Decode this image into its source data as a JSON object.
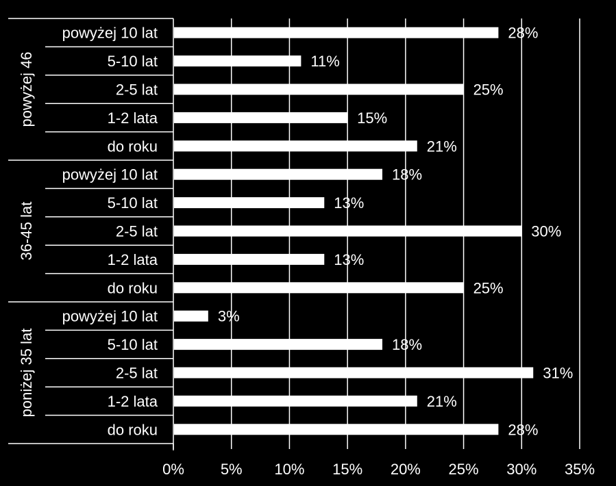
{
  "chart_data": {
    "type": "bar",
    "orientation": "horizontal",
    "title": "",
    "xlabel": "",
    "ylabel": "",
    "xlim": [
      0,
      35
    ],
    "x_ticks": [
      "0%",
      "5%",
      "10%",
      "15%",
      "20%",
      "25%",
      "30%",
      "35%"
    ],
    "grid": "vertical",
    "legend": "none",
    "colors": {
      "background": "#000000",
      "bar": "#ffffff",
      "text": "#ffffff"
    },
    "groups": [
      {
        "name": "powyżej 46",
        "categories": [
          "powyżej 10 lat",
          "5-10 lat",
          "2-5 lat",
          "1-2 lata",
          "do roku"
        ],
        "values": [
          28,
          11,
          25,
          15,
          21
        ],
        "labels": [
          "28%",
          "11%",
          "25%",
          "15%",
          "21%"
        ]
      },
      {
        "name": "36-45 lat",
        "categories": [
          "powyżej 10 lat",
          "5-10 lat",
          "2-5 lat",
          "1-2 lata",
          "do roku"
        ],
        "values": [
          18,
          13,
          30,
          13,
          25
        ],
        "labels": [
          "18%",
          "13%",
          "30%",
          "13%",
          "25%"
        ]
      },
      {
        "name": "poniżej 35 lat",
        "categories": [
          "powyżej 10 lat",
          "5-10 lat",
          "2-5 lat",
          "1-2 lata",
          "do roku"
        ],
        "values": [
          3,
          18,
          31,
          21,
          28
        ],
        "labels": [
          "3%",
          "18%",
          "31%",
          "21%",
          "28%"
        ]
      }
    ]
  }
}
